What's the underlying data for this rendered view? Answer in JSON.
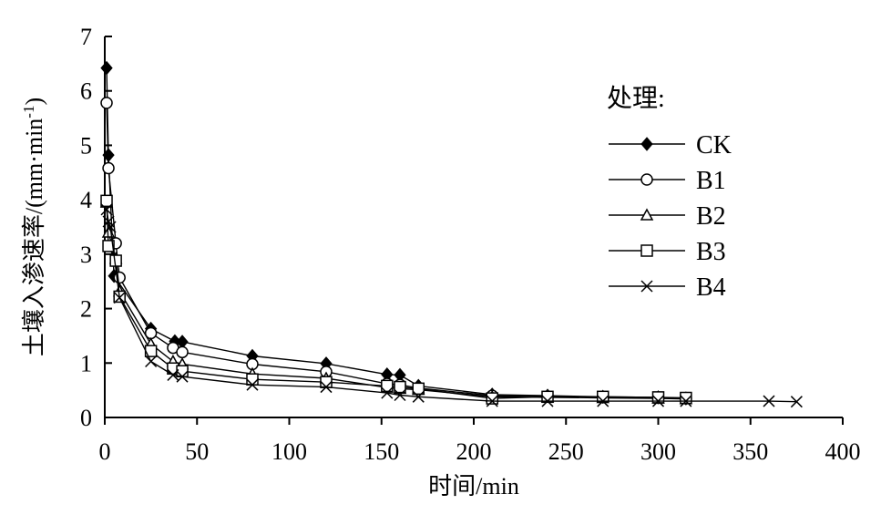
{
  "chart_data": {
    "type": "line",
    "xlabel": "时间/min",
    "ylabel": "土壤入渗速率/(mm·min",
    "ylabel_sup": "-1",
    "ylabel_end": ")",
    "xlim": [
      0,
      400
    ],
    "ylim": [
      0,
      7
    ],
    "xticks": [
      0,
      50,
      100,
      150,
      200,
      250,
      300,
      350,
      400
    ],
    "yticks": [
      0,
      1,
      2,
      3,
      4,
      5,
      6,
      7
    ],
    "grid": false,
    "legend_title": "处理:",
    "legend_position": "right",
    "series": [
      {
        "name": "CK",
        "marker": "diamond",
        "x": [
          1,
          2,
          5,
          25,
          38,
          42,
          80,
          120,
          153,
          160,
          170,
          210,
          240,
          270,
          300,
          315
        ],
        "y": [
          6.42,
          4.82,
          2.6,
          1.63,
          1.4,
          1.39,
          1.13,
          0.99,
          0.79,
          0.78,
          0.58,
          0.42,
          0.4,
          0.38,
          0.37,
          0.35
        ]
      },
      {
        "name": "B1",
        "marker": "circle",
        "x": [
          1,
          2,
          6,
          8,
          25,
          37,
          42,
          80,
          120,
          153,
          160,
          170,
          210,
          240,
          270,
          300,
          315
        ],
        "y": [
          5.78,
          4.58,
          3.2,
          2.57,
          1.55,
          1.28,
          1.2,
          0.98,
          0.84,
          0.62,
          0.6,
          0.54,
          0.4,
          0.38,
          0.37,
          0.36,
          0.35
        ]
      },
      {
        "name": "B2",
        "marker": "triangle",
        "x": [
          1,
          2,
          6,
          8,
          25,
          37,
          42,
          80,
          120,
          153,
          160,
          170,
          210,
          240,
          270,
          300,
          315
        ],
        "y": [
          3.95,
          3.4,
          2.92,
          2.32,
          1.35,
          1.03,
          0.98,
          0.8,
          0.72,
          0.55,
          0.53,
          0.51,
          0.38,
          0.37,
          0.36,
          0.35,
          0.34
        ]
      },
      {
        "name": "B3",
        "marker": "square",
        "x": [
          1,
          2,
          6,
          8,
          25,
          37,
          42,
          80,
          120,
          153,
          160,
          170,
          210,
          240,
          270,
          300,
          315
        ],
        "y": [
          3.98,
          3.15,
          2.88,
          2.22,
          1.22,
          0.9,
          0.85,
          0.7,
          0.65,
          0.58,
          0.56,
          0.53,
          0.35,
          0.38,
          0.38,
          0.37,
          0.36
        ]
      },
      {
        "name": "B4",
        "marker": "x",
        "x": [
          1,
          2,
          3,
          8,
          25,
          37,
          42,
          80,
          120,
          153,
          160,
          170,
          210,
          240,
          270,
          300,
          315,
          360,
          375
        ],
        "y": [
          3.82,
          3.6,
          3.5,
          2.2,
          1.03,
          0.78,
          0.75,
          0.6,
          0.56,
          0.45,
          0.41,
          0.38,
          0.3,
          0.3,
          0.3,
          0.3,
          0.3,
          0.3,
          0.29
        ]
      }
    ]
  }
}
